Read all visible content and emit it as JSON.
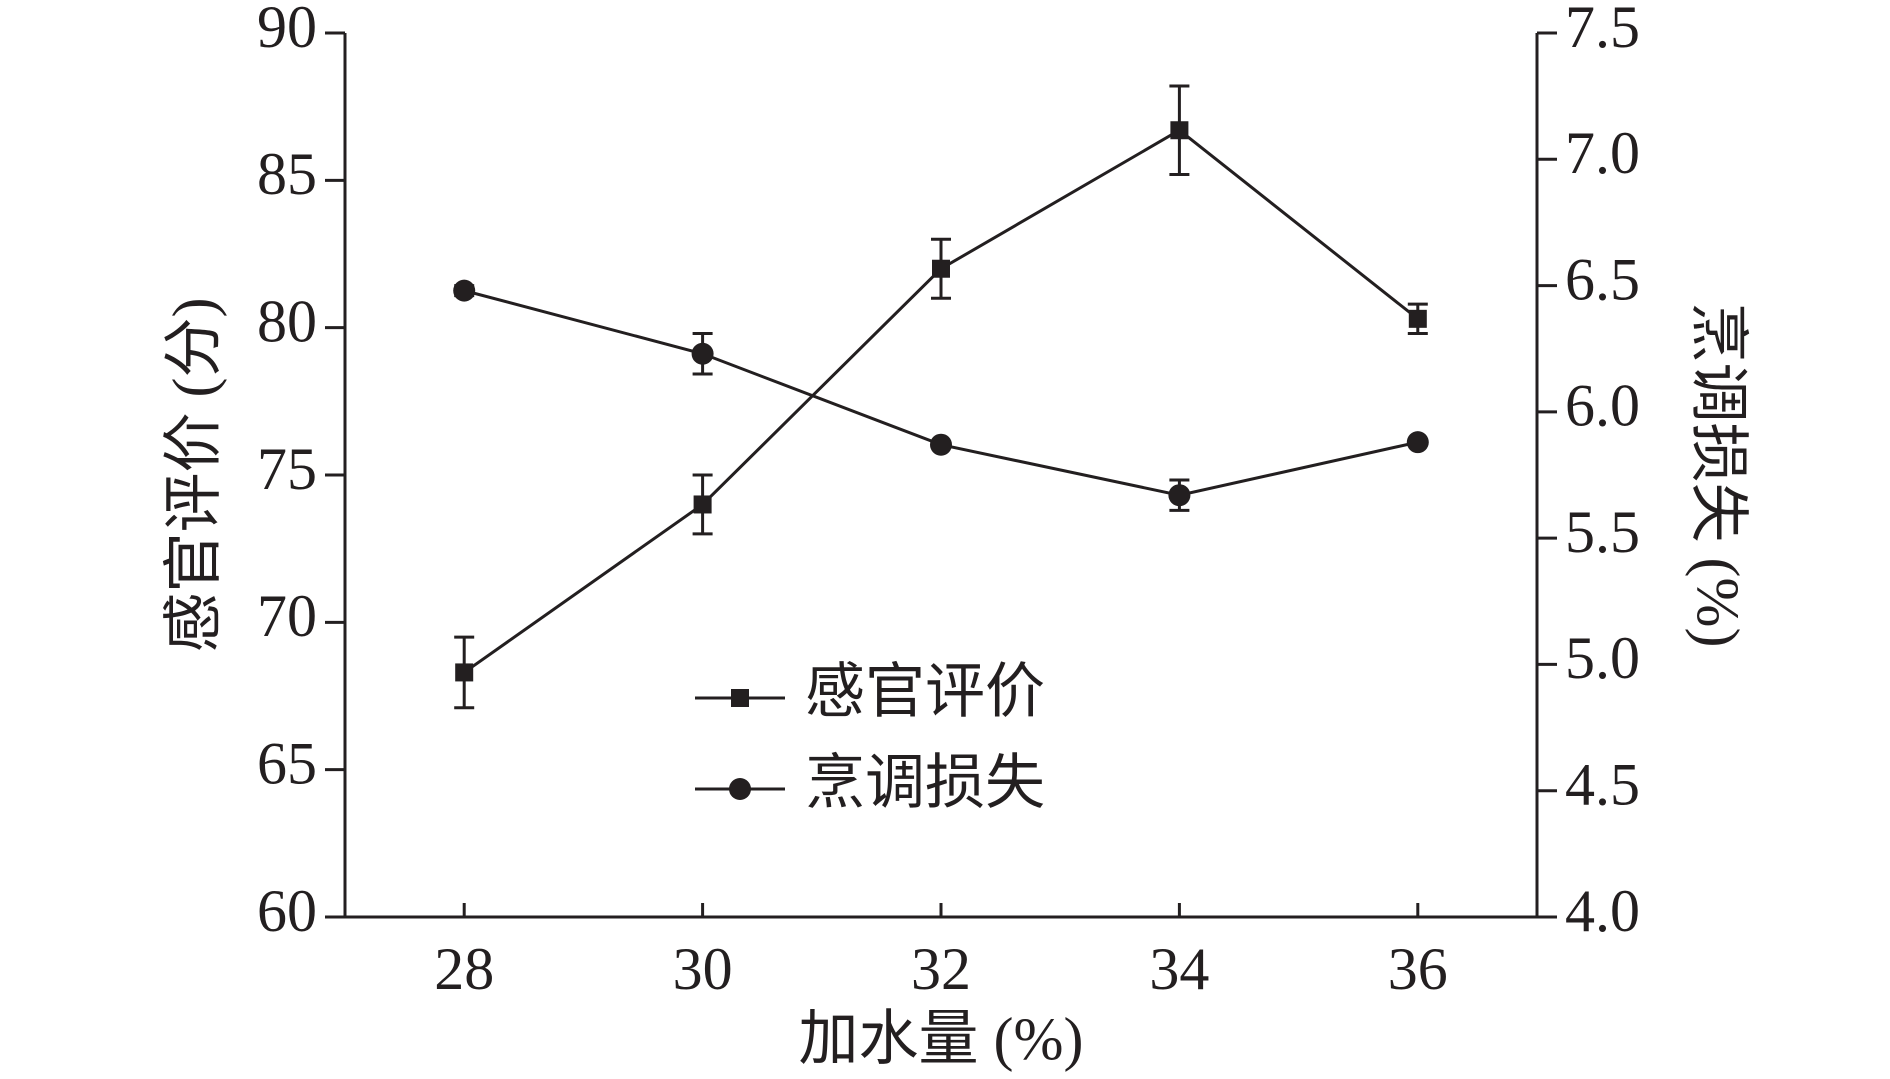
{
  "chart_data": {
    "type": "line",
    "x_label": "加水量 (%)",
    "y_label": "感官评价 (分)",
    "y2_label": "烹调损失 (%)",
    "x": [
      28,
      30,
      32,
      34,
      36
    ],
    "xlim": [
      27,
      37
    ],
    "xticks": [
      28,
      30,
      32,
      34,
      36
    ],
    "ylim": [
      60,
      90
    ],
    "yticks": [
      60,
      65,
      70,
      75,
      80,
      85,
      90
    ],
    "y2lim": [
      4.0,
      7.5
    ],
    "y2ticks": [
      {
        "value": 4,
        "label": "4.0"
      },
      4.5,
      {
        "value": 5,
        "label": "5.0"
      },
      5.5,
      {
        "value": 6,
        "label": "6.0"
      },
      6.5,
      {
        "value": 7,
        "label": "7.0"
      },
      7.5
    ],
    "series": [
      {
        "name": "感官评价",
        "color": "#231f20",
        "marker": "square",
        "values": [
          68.3,
          74.0,
          82.0,
          86.7,
          80.3
        ],
        "errors": [
          1.2,
          1.0,
          1.0,
          1.5,
          0.5
        ]
      },
      {
        "name": "烹调损失",
        "color": "#231f20",
        "marker": "circle",
        "axis": "y2",
        "values": [
          6.48,
          6.23,
          5.87,
          5.67,
          5.88
        ],
        "errors": [
          0.02,
          0.08,
          0.01,
          0.06,
          0.01
        ]
      }
    ]
  }
}
